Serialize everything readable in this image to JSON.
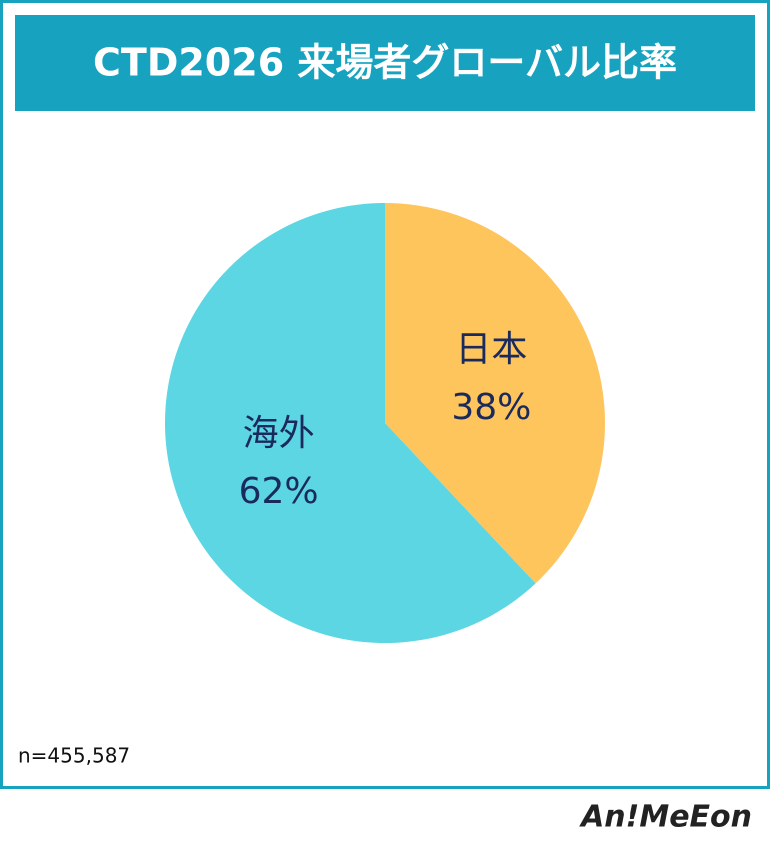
{
  "chart_data": {
    "type": "pie",
    "title": "CTD2026 来場者グローバル比率",
    "categories": [
      "日本",
      "海外"
    ],
    "values": [
      38,
      62
    ],
    "value_labels": [
      "38%",
      "62%"
    ],
    "colors": [
      "#fdc55c",
      "#5cd6e2"
    ],
    "note": "n=455,587",
    "logo": "An!MeEon"
  }
}
